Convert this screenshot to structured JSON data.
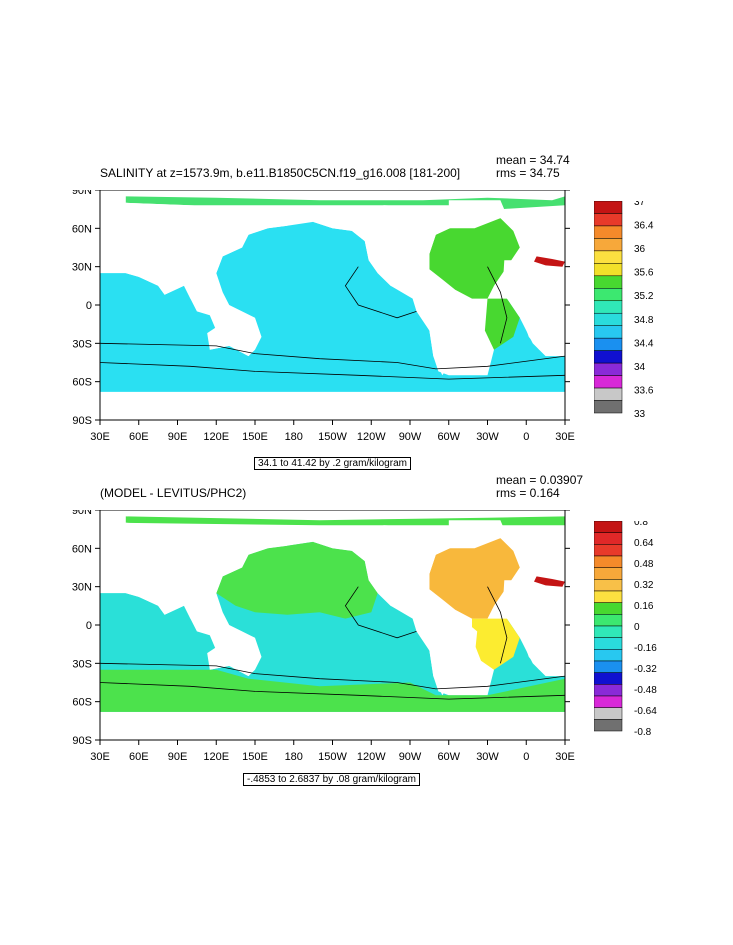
{
  "chart_data": [
    {
      "type": "heatmap",
      "title": "SALINITY at z=1573.9m, b.e11.B1850C5CN.f19_g16.008 [181-200]",
      "stats": {
        "mean": "mean = 34.74",
        "rms": "rms = 34.75"
      },
      "units_note": "34.1 to 41.42 by .2 gram/kilogram",
      "x_ticks": [
        "30E",
        "60E",
        "90E",
        "120E",
        "150E",
        "180",
        "150W",
        "120W",
        "90W",
        "60W",
        "30W",
        "0",
        "30E"
      ],
      "y_ticks": [
        "90N",
        "60N",
        "30N",
        "0",
        "30S",
        "60S",
        "90S"
      ],
      "colorbar": {
        "labels": [
          "37",
          "36.4",
          "36",
          "35.6",
          "35.2",
          "34.8",
          "34.4",
          "34",
          "33.6",
          "33"
        ],
        "colors": [
          "#c41414",
          "#e83a2a",
          "#f58a2a",
          "#f7a83a",
          "#fce040",
          "#f2e02a",
          "#48d830",
          "#3ce870",
          "#30e8b8",
          "#2adcdc",
          "#28c8f0",
          "#1a90f0",
          "#1010d0",
          "#8a2ad8",
          "#d828d8",
          "#c8c8c8",
          "#707070"
        ]
      },
      "fill": {
        "ocean": "#2ae0f2",
        "atlantic_north": "#48d830",
        "arctic": "#46e070"
      }
    },
    {
      "type": "heatmap",
      "title": "(MODEL - LEVITUS/PHC2)",
      "stats": {
        "mean": "mean = 0.03907",
        "rms": "rms = 0.164"
      },
      "units_note": "-.4853 to 2.6837 by .08 gram/kilogram",
      "x_ticks": [
        "30E",
        "60E",
        "90E",
        "120E",
        "150E",
        "180",
        "150W",
        "120W",
        "90W",
        "60W",
        "30W",
        "0",
        "30E"
      ],
      "y_ticks": [
        "90N",
        "60N",
        "30N",
        "0",
        "30S",
        "60S",
        "90S"
      ],
      "colorbar": {
        "labels": [
          "0.8",
          "0.64",
          "0.48",
          "0.32",
          "0.16",
          "0",
          "-0.16",
          "-0.32",
          "-0.48",
          "-0.64",
          "-0.8"
        ],
        "colors": [
          "#c41414",
          "#e02828",
          "#e83a2a",
          "#f58a2a",
          "#f7a83a",
          "#f8c048",
          "#fce040",
          "#48d830",
          "#3ce870",
          "#30e8b8",
          "#2adcdc",
          "#28c8f0",
          "#1a90f0",
          "#1010d0",
          "#8a2ad8",
          "#d828d8",
          "#c8c8c8",
          "#707070"
        ]
      },
      "fill": {
        "ocean": "#2ae0d8",
        "green": "#4ce24c",
        "yellow": "#fcec30",
        "orange": "#f8b83c"
      }
    }
  ]
}
